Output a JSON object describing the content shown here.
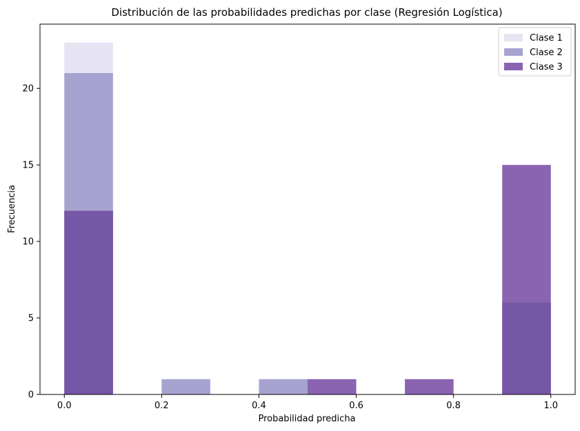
{
  "chart_data": {
    "type": "bar",
    "title": "Distribución de las probabilidades predichas por clase (Regresión Logística)",
    "xlabel": "Probabilidad predicha",
    "ylabel": "Frecuencia",
    "xlim": [
      -0.05,
      1.05
    ],
    "ylim": [
      0,
      24.2
    ],
    "x_ticks": [
      0.0,
      0.2,
      0.4,
      0.6,
      0.8,
      1.0
    ],
    "x_tick_labels": [
      "0.0",
      "0.2",
      "0.4",
      "0.6",
      "0.8",
      "1.0"
    ],
    "y_ticks": [
      0,
      5,
      10,
      15,
      20
    ],
    "y_tick_labels": [
      "0",
      "5",
      "10",
      "15",
      "20"
    ],
    "grid": false,
    "legend_position": "top-right",
    "series": [
      {
        "name": "Clase 1",
        "color": "#e6e4f2",
        "bins": [
          {
            "start": 0.0,
            "end": 0.1,
            "count": 23
          }
        ]
      },
      {
        "name": "Clase 2",
        "color": "#a7a3d0",
        "bins": [
          {
            "start": 0.0,
            "end": 0.1,
            "count": 21
          },
          {
            "start": 0.2,
            "end": 0.3,
            "count": 1
          },
          {
            "start": 0.4,
            "end": 0.5,
            "count": 1
          }
        ]
      },
      {
        "name": "Clase 3",
        "color": "#8a64b0",
        "bins": [
          {
            "start": 0.0,
            "end": 0.1,
            "count": 12
          },
          {
            "start": 0.5,
            "end": 0.6,
            "count": 1
          },
          {
            "start": 0.7,
            "end": 0.8,
            "count": 1
          },
          {
            "start": 0.9,
            "end": 1.0,
            "count": 15
          }
        ]
      }
    ],
    "overlay_bins": [
      {
        "start": 0.0,
        "end": 0.1,
        "count": 12,
        "color": "#7558a5"
      },
      {
        "start": 0.9,
        "end": 1.0,
        "count": 6,
        "color": "#7558a5"
      }
    ]
  }
}
